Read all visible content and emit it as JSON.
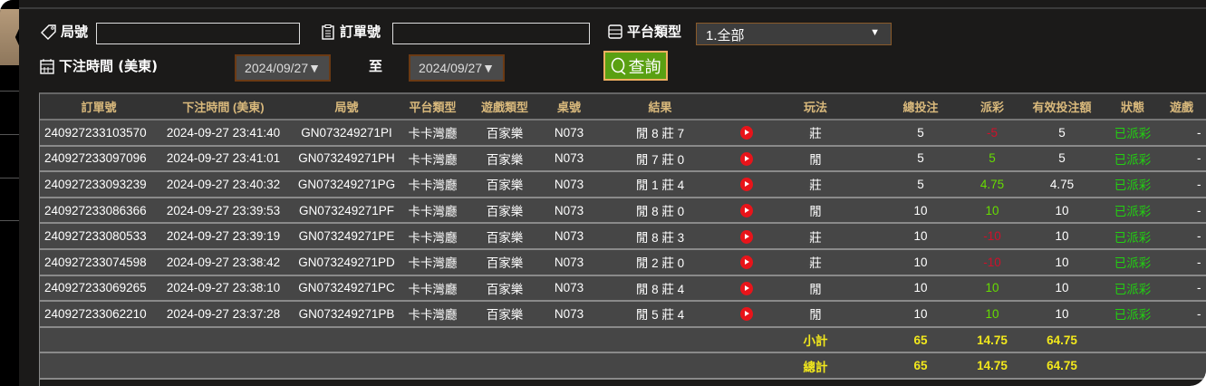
{
  "filters": {
    "round_label": "局號",
    "round_value": "",
    "order_label": "訂單號",
    "order_value": "",
    "platform_label": "平台類型",
    "platform_selected": "1.全部",
    "time_label": "下注時間 (美東)",
    "date_from": "2024/09/27▼",
    "to_label": "至",
    "date_to": "2024/09/27▼",
    "query_label": "查詢"
  },
  "table": {
    "headers": [
      "訂單號",
      "下注時間 (美東)",
      "局號",
      "平台類型",
      "遊戲類型",
      "桌號",
      "結果",
      "",
      "玩法",
      "總投注",
      "派彩",
      "有效投注額",
      "狀態",
      "遊戲"
    ],
    "rows": [
      {
        "order": "240927233103570",
        "time": "2024-09-27 23:41:40",
        "round": "GN073249271PI",
        "platform": "卡卡灣廳",
        "game": "百家樂",
        "table": "N073",
        "result": "閒 8 莊 7",
        "play": "莊",
        "bet": "5",
        "payout": "-5",
        "payout_sign": "neg",
        "valid": "5",
        "status": "已派彩",
        "extra": "-"
      },
      {
        "order": "240927233097096",
        "time": "2024-09-27 23:41:01",
        "round": "GN073249271PH",
        "platform": "卡卡灣廳",
        "game": "百家樂",
        "table": "N073",
        "result": "閒 7 莊 0",
        "play": "閒",
        "bet": "5",
        "payout": "5",
        "payout_sign": "pos",
        "valid": "5",
        "status": "已派彩",
        "extra": "-"
      },
      {
        "order": "240927233093239",
        "time": "2024-09-27 23:40:32",
        "round": "GN073249271PG",
        "platform": "卡卡灣廳",
        "game": "百家樂",
        "table": "N073",
        "result": "閒 1 莊 4",
        "play": "莊",
        "bet": "5",
        "payout": "4.75",
        "payout_sign": "pos",
        "valid": "4.75",
        "status": "已派彩",
        "extra": "-"
      },
      {
        "order": "240927233086366",
        "time": "2024-09-27 23:39:53",
        "round": "GN073249271PF",
        "platform": "卡卡灣廳",
        "game": "百家樂",
        "table": "N073",
        "result": "閒 8 莊 0",
        "play": "閒",
        "bet": "10",
        "payout": "10",
        "payout_sign": "pos",
        "valid": "10",
        "status": "已派彩",
        "extra": "-"
      },
      {
        "order": "240927233080533",
        "time": "2024-09-27 23:39:19",
        "round": "GN073249271PE",
        "platform": "卡卡灣廳",
        "game": "百家樂",
        "table": "N073",
        "result": "閒 8 莊 3",
        "play": "莊",
        "bet": "10",
        "payout": "-10",
        "payout_sign": "neg",
        "valid": "10",
        "status": "已派彩",
        "extra": "-"
      },
      {
        "order": "240927233074598",
        "time": "2024-09-27 23:38:42",
        "round": "GN073249271PD",
        "platform": "卡卡灣廳",
        "game": "百家樂",
        "table": "N073",
        "result": "閒 2 莊 0",
        "play": "莊",
        "bet": "10",
        "payout": "-10",
        "payout_sign": "neg",
        "valid": "10",
        "status": "已派彩",
        "extra": "-"
      },
      {
        "order": "240927233069265",
        "time": "2024-09-27 23:38:10",
        "round": "GN073249271PC",
        "platform": "卡卡灣廳",
        "game": "百家樂",
        "table": "N073",
        "result": "閒 8 莊 4",
        "play": "閒",
        "bet": "10",
        "payout": "10",
        "payout_sign": "pos",
        "valid": "10",
        "status": "已派彩",
        "extra": "-"
      },
      {
        "order": "240927233062210",
        "time": "2024-09-27 23:37:28",
        "round": "GN073249271PB",
        "platform": "卡卡灣廳",
        "game": "百家樂",
        "table": "N073",
        "result": "閒 5 莊 4",
        "play": "閒",
        "bet": "10",
        "payout": "10",
        "payout_sign": "pos",
        "valid": "10",
        "status": "已派彩",
        "extra": "-"
      }
    ],
    "subtotal": {
      "label": "小計",
      "bet": "65",
      "payout": "14.75",
      "valid": "64.75"
    },
    "total": {
      "label": "總計",
      "bet": "65",
      "payout": "14.75",
      "valid": "64.75"
    }
  },
  "colors": {
    "negative": "#d0102a",
    "positive": "#66dd00",
    "status": "#22d011",
    "header_text": "#d9b97c",
    "summary": "#f2e81c",
    "query_button": "#5aa012"
  }
}
